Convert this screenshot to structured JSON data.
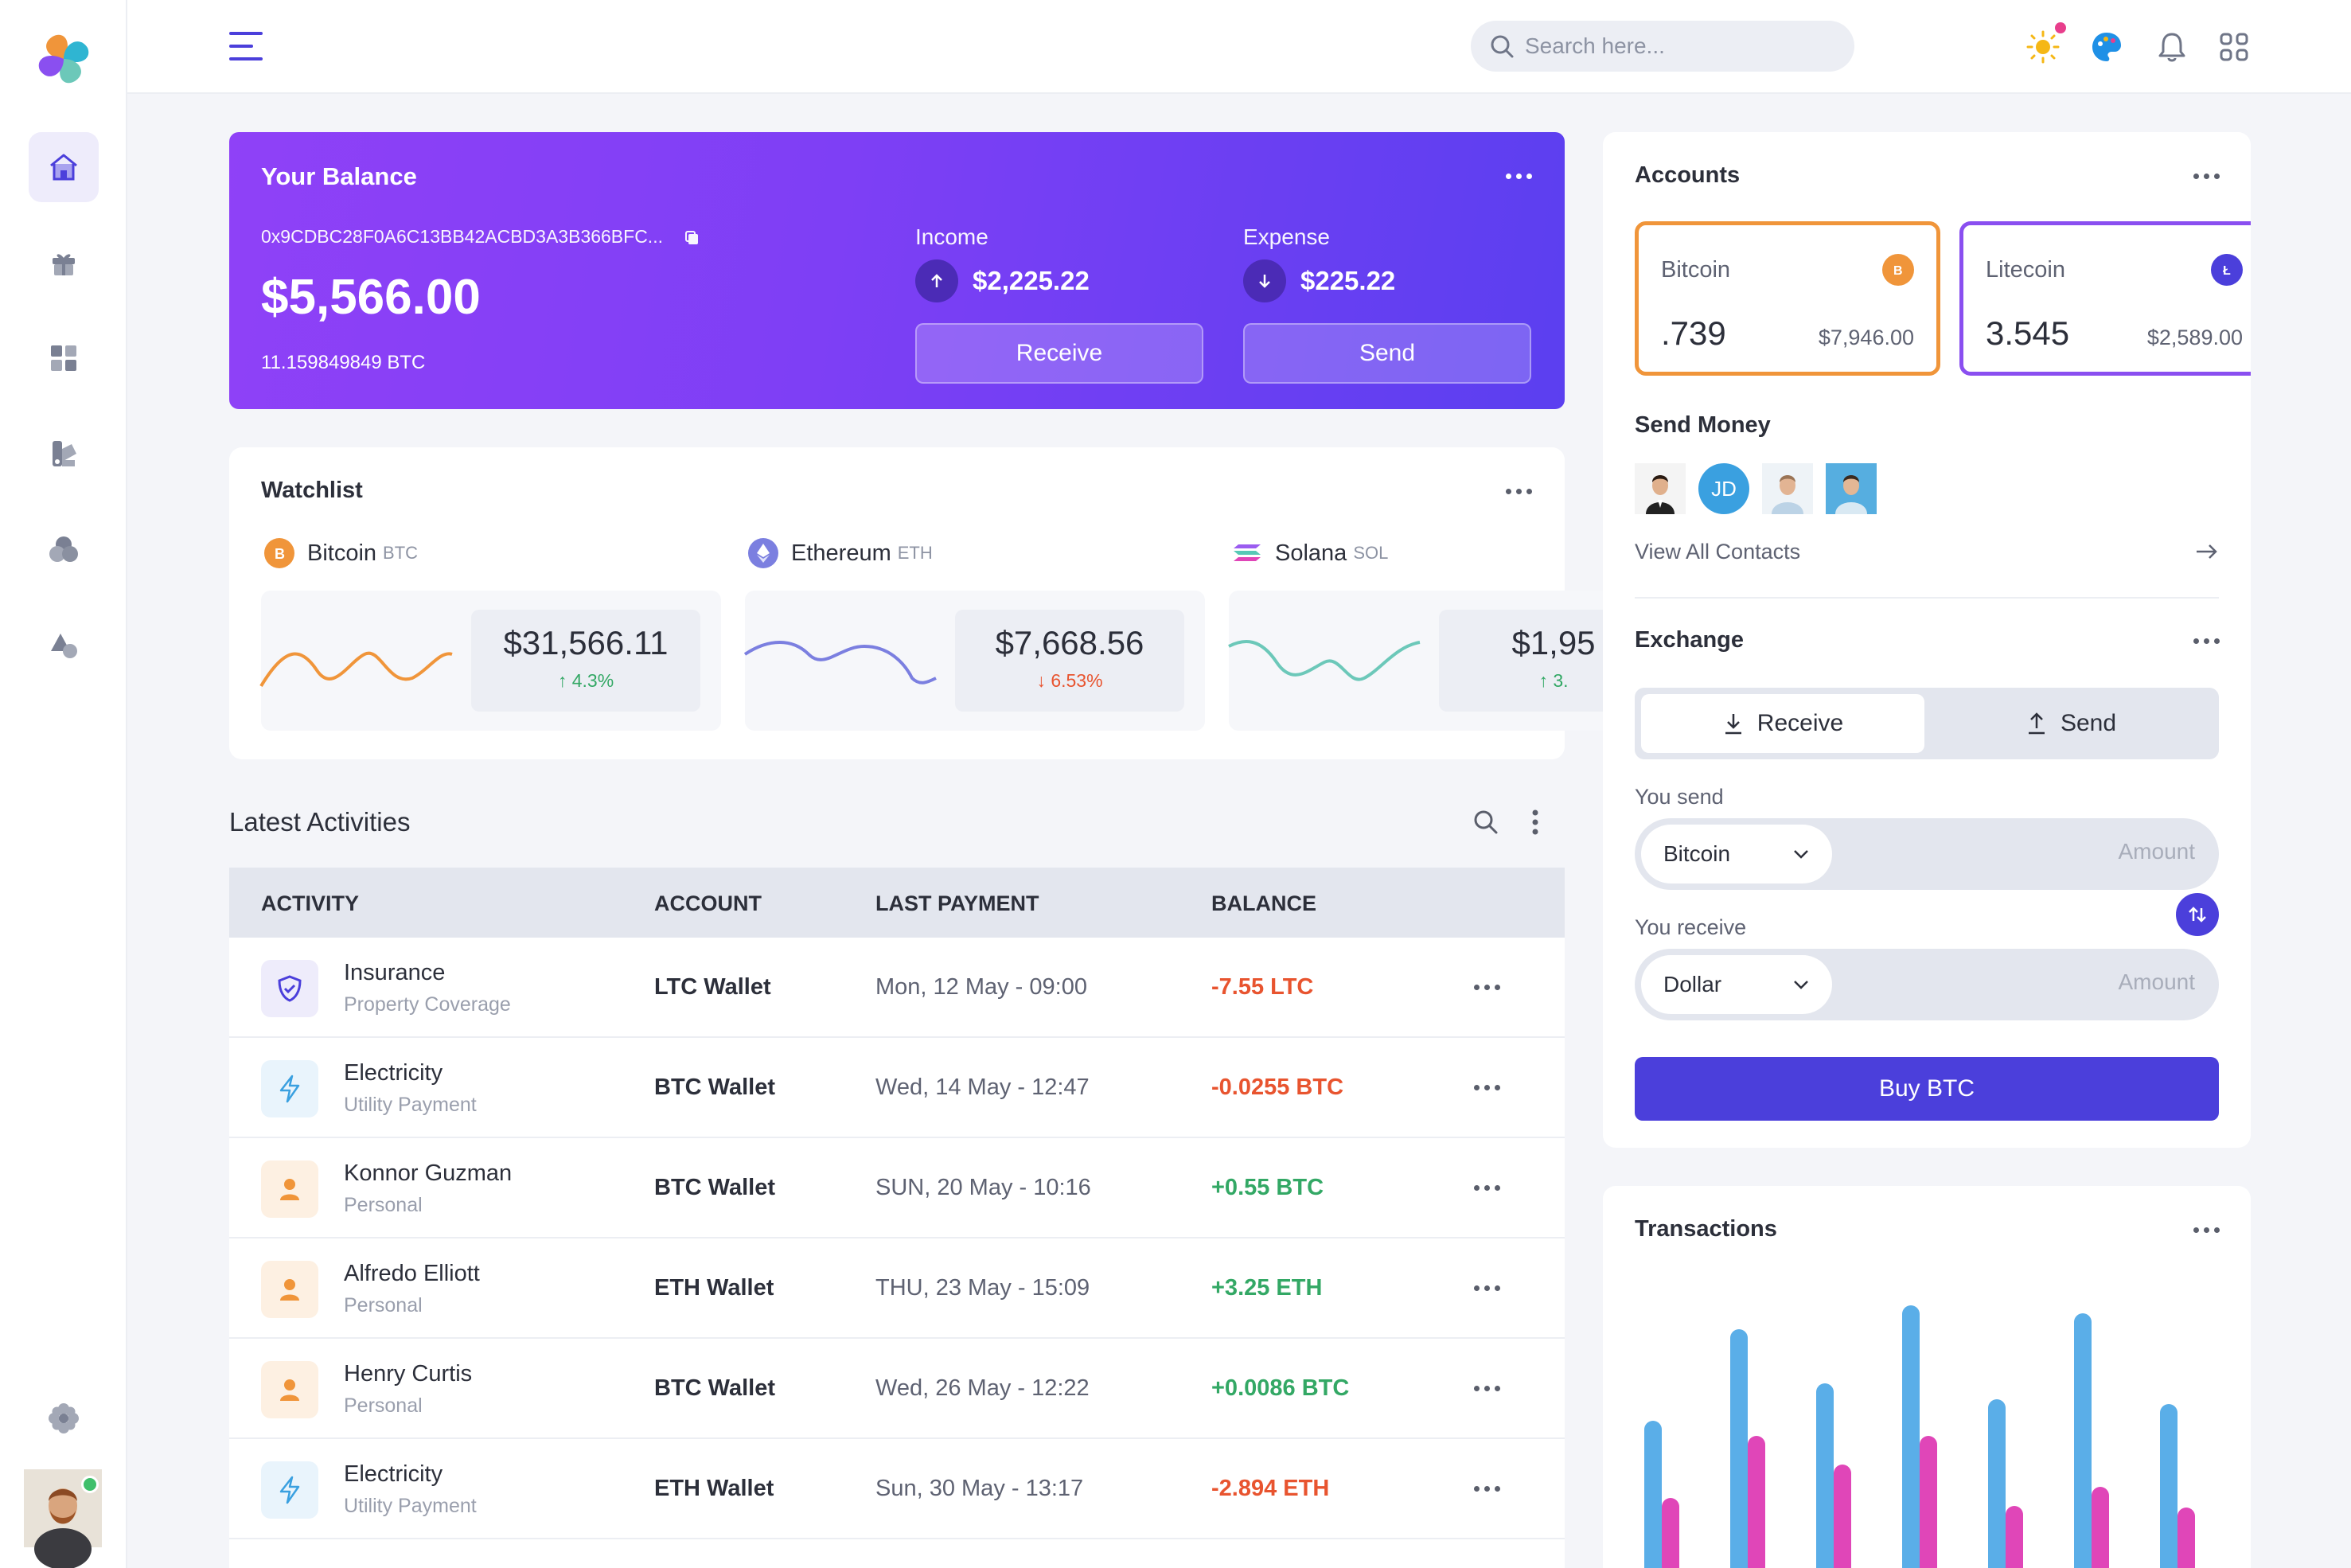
{
  "topbar": {
    "search_placeholder": "Search here..."
  },
  "sidebar": {
    "items": [
      {
        "icon": "home-icon",
        "active": true
      },
      {
        "icon": "gift-icon"
      },
      {
        "icon": "dashboard-grid-icon"
      },
      {
        "icon": "paint-swatch-icon"
      },
      {
        "icon": "circles-icon"
      },
      {
        "icon": "shapes-icon"
      }
    ],
    "settings_icon": "settings-flower-icon"
  },
  "balance": {
    "title": "Your Balance",
    "address": "0x9CDBC28F0A6C13BB42ACBD3A3B366BFC...",
    "amount": "$5,566.00",
    "btc": "11.159849849 BTC",
    "income_label": "Income",
    "income_value": "$2,225.22",
    "expense_label": "Expense",
    "expense_value": "$225.22",
    "receive_label": "Receive",
    "send_label": "Send"
  },
  "watchlist": {
    "title": "Watchlist",
    "coins": [
      {
        "name": "Bitcoin",
        "symbol": "BTC",
        "price": "$31,566.11",
        "change": "4.3%",
        "direction": "up",
        "color": "#f0953a"
      },
      {
        "name": "Ethereum",
        "symbol": "ETH",
        "price": "$7,668.56",
        "change": "6.53%",
        "direction": "down",
        "color": "#7b7fe0"
      },
      {
        "name": "Solana",
        "symbol": "SOL",
        "price": "$1,95",
        "change": "3.",
        "direction": "up",
        "color": "#6cc8b9"
      }
    ]
  },
  "activities": {
    "title": "Latest Activities",
    "headers": [
      "ACTIVITY",
      "ACCOUNT",
      "LAST PAYMENT",
      "BALANCE"
    ],
    "rows": [
      {
        "name": "Insurance",
        "sub": "Property Coverage",
        "account": "LTC Wallet",
        "date": "Mon, 12 May - 09:00",
        "balance": "-7.55 LTC",
        "type": "neg",
        "icon": "shield-icon"
      },
      {
        "name": "Electricity",
        "sub": "Utility Payment",
        "account": "BTC Wallet",
        "date": "Wed, 14 May - 12:47",
        "balance": "-0.0255 BTC",
        "type": "neg",
        "icon": "lightning-icon"
      },
      {
        "name": "Konnor Guzman",
        "sub": "Personal",
        "account": "BTC Wallet",
        "date": "SUN, 20 May - 10:16",
        "balance": "+0.55 BTC",
        "type": "pos",
        "icon": "person-icon"
      },
      {
        "name": "Alfredo Elliott",
        "sub": "Personal",
        "account": "ETH Wallet",
        "date": "THU, 23 May - 15:09",
        "balance": "+3.25 ETH",
        "type": "pos",
        "icon": "person-icon"
      },
      {
        "name": "Henry Curtis",
        "sub": "Personal",
        "account": "BTC Wallet",
        "date": "Wed, 26 May - 12:22",
        "balance": "+0.0086 BTC",
        "type": "pos",
        "icon": "person-icon"
      },
      {
        "name": "Electricity",
        "sub": "Utility Payment",
        "account": "ETH Wallet",
        "date": "Sun, 30 May - 13:17",
        "balance": "-2.894 ETH",
        "type": "neg",
        "icon": "lightning-icon"
      }
    ]
  },
  "accounts": {
    "title": "Accounts",
    "items": [
      {
        "name": "Bitcoin",
        "qty": ".739",
        "usd": "$7,946.00",
        "color": "#f0953a"
      },
      {
        "name": "Litecoin",
        "qty": "3.545",
        "usd": "$2,589.00",
        "color": "#8a4ff0"
      }
    ],
    "send_money_title": "Send Money",
    "contact_initials": "JD",
    "view_all": "View All Contacts"
  },
  "exchange": {
    "title": "Exchange",
    "tab_receive": "Receive",
    "tab_send": "Send",
    "you_send": "You send",
    "send_currency": "Bitcoin",
    "you_receive": "You receive",
    "receive_currency": "Dollar",
    "amount_placeholder": "Amount",
    "buy_label": "Buy BTC"
  },
  "transactions": {
    "title": "Transactions"
  },
  "chart_data": {
    "type": "bar",
    "title": "Transactions",
    "series": [
      {
        "color": "#5aaee8",
        "values": [
          185,
          300,
          232,
          330,
          212,
          320,
          206
        ]
      },
      {
        "color": "#e046b8",
        "values": [
          88,
          166,
          130,
          166,
          78,
          102,
          76
        ]
      }
    ]
  }
}
